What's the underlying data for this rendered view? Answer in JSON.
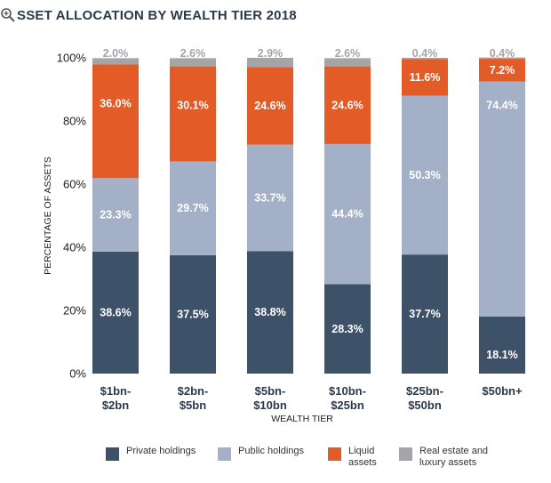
{
  "title": "SSET ALLOCATION BY WEALTH TIER 2018",
  "colors": {
    "private": "#3d5268",
    "public": "#a3b0c8",
    "liquid": "#e35b26",
    "realestate": "#a3a5a8",
    "text_dark": "#2b3a4a",
    "pct_light": "#a3a5a8"
  },
  "chart_data": {
    "type": "bar",
    "stacked": true,
    "title": "SSET ALLOCATION BY WEALTH TIER 2018",
    "xlabel": "WEALTH TIER",
    "ylabel": "PERCENTAGE OF ASSETS",
    "ylim": [
      0,
      100
    ],
    "yticks": [
      "0%",
      "20%",
      "40%",
      "60%",
      "80%",
      "100%"
    ],
    "categories": [
      [
        "$1bn-",
        "$2bn"
      ],
      [
        "$2bn-",
        "$5bn"
      ],
      [
        "$5bn-",
        "$10bn"
      ],
      [
        "$10bn-",
        "$25bn"
      ],
      [
        "$25bn-",
        "$50bn"
      ],
      [
        "$50bn+"
      ]
    ],
    "series": [
      {
        "key": "private",
        "name": "Private holdings",
        "values": [
          38.6,
          37.5,
          38.8,
          28.3,
          37.7,
          18.1
        ],
        "labels": [
          "38.6%",
          "37.5%",
          "38.8%",
          "28.3%",
          "37.7%",
          "18.1%"
        ]
      },
      {
        "key": "public",
        "name": "Public holdings",
        "values": [
          23.3,
          29.7,
          33.7,
          44.4,
          50.3,
          74.4
        ],
        "labels": [
          "23.3%",
          "29.7%",
          "33.7%",
          "44.4%",
          "50.3%",
          "74.4%"
        ]
      },
      {
        "key": "liquid",
        "name": "Liquid assets",
        "values": [
          36.0,
          30.1,
          24.6,
          24.6,
          11.6,
          7.2
        ],
        "labels": [
          "36.0%",
          "30.1%",
          "24.6%",
          "24.6%",
          "11.6%",
          "7.2%"
        ]
      },
      {
        "key": "realestate",
        "name": "Real estate and luxury assets",
        "values": [
          2.0,
          2.6,
          2.9,
          2.6,
          0.4,
          0.4
        ],
        "labels": [
          "2.0%",
          "2.6%",
          "2.9%",
          "2.6%",
          "0.4%",
          "0.4%"
        ]
      }
    ]
  },
  "legend": [
    {
      "key": "private",
      "lines": [
        "Private holdings"
      ]
    },
    {
      "key": "public",
      "lines": [
        "Public holdings"
      ]
    },
    {
      "key": "liquid",
      "lines": [
        "Liquid",
        "assets"
      ]
    },
    {
      "key": "realestate",
      "lines": [
        "Real estate and",
        "luxury assets"
      ]
    }
  ]
}
